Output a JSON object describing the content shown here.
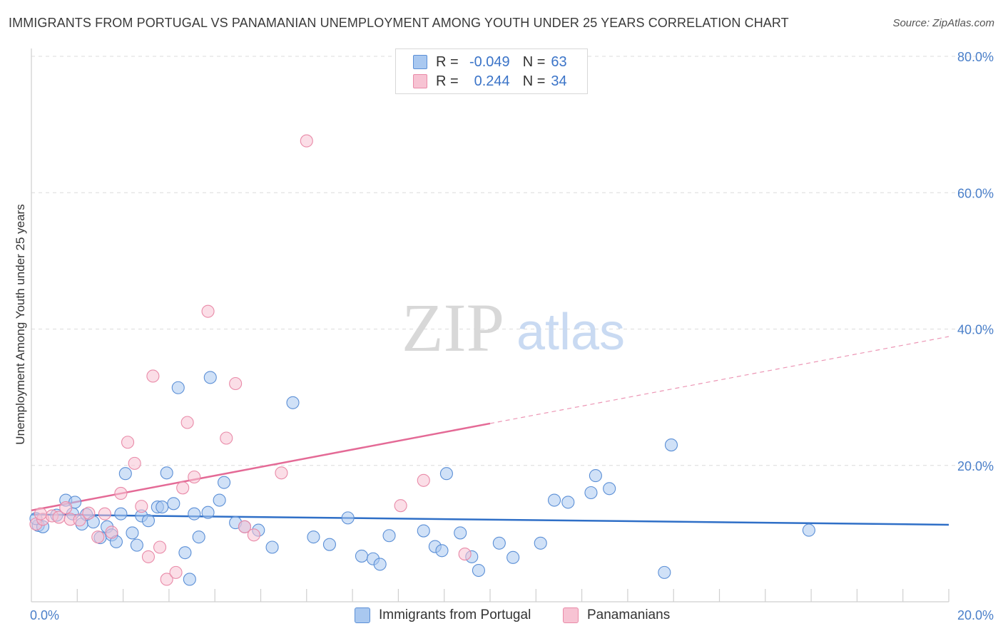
{
  "title": "IMMIGRANTS FROM PORTUGAL VS PANAMANIAN UNEMPLOYMENT AMONG YOUTH UNDER 25 YEARS CORRELATION CHART",
  "source": "Source: ZipAtlas.com",
  "watermark": {
    "zip": "ZIP",
    "atlas": "atlas"
  },
  "legend": {
    "rows": [
      {
        "r_label": "R =",
        "r_value": "-0.049",
        "n_label": "N =",
        "n_value": "63",
        "color": "#a9c8f0",
        "border": "#5b8fd6"
      },
      {
        "r_label": "R =",
        "r_value": "0.244",
        "n_label": "N =",
        "n_value": "34",
        "color": "#f7c3d3",
        "border": "#e98aa8"
      }
    ]
  },
  "bottom_legend": [
    {
      "label": "Immigrants from Portugal",
      "color": "#a9c8f0",
      "border": "#5b8fd6"
    },
    {
      "label": "Panamanians",
      "color": "#f7c3d3",
      "border": "#e98aa8"
    }
  ],
  "chart_data": {
    "type": "scatter",
    "title": "IMMIGRANTS FROM PORTUGAL VS PANAMANIAN UNEMPLOYMENT AMONG YOUTH UNDER 25 YEARS CORRELATION CHART",
    "xlabel": "",
    "ylabel": "Unemployment Among Youth under 25 years",
    "xlim": [
      0,
      20
    ],
    "ylim": [
      0,
      80
    ],
    "x_tick_labels": [
      "0.0%",
      "20.0%"
    ],
    "y_ticks": [
      20,
      40,
      60,
      80
    ],
    "y_tick_labels": [
      "20.0%",
      "40.0%",
      "60.0%",
      "80.0%"
    ],
    "grid": true,
    "series": [
      {
        "name": "Immigrants from Portugal",
        "color": "#a9c8f0",
        "stroke": "#5b8fd6",
        "trend": {
          "x": [
            0,
            20
          ],
          "y": [
            12.8,
            11.3
          ],
          "color": "#2f6fc7",
          "solid_until": 20
        },
        "points": [
          [
            0.15,
            11.2
          ],
          [
            0.25,
            11.0
          ],
          [
            0.55,
            12.7
          ],
          [
            0.75,
            14.9
          ],
          [
            0.9,
            12.9
          ],
          [
            0.95,
            14.6
          ],
          [
            1.1,
            11.4
          ],
          [
            1.2,
            12.8
          ],
          [
            1.35,
            11.7
          ],
          [
            1.5,
            9.4
          ],
          [
            1.65,
            11.0
          ],
          [
            1.75,
            9.8
          ],
          [
            1.85,
            8.8
          ],
          [
            1.95,
            12.9
          ],
          [
            2.05,
            18.8
          ],
          [
            2.2,
            10.1
          ],
          [
            2.3,
            8.3
          ],
          [
            2.4,
            12.6
          ],
          [
            2.55,
            11.9
          ],
          [
            2.75,
            13.9
          ],
          [
            2.85,
            13.9
          ],
          [
            2.95,
            18.9
          ],
          [
            3.1,
            14.4
          ],
          [
            3.2,
            31.4
          ],
          [
            3.35,
            7.2
          ],
          [
            3.45,
            3.3
          ],
          [
            3.55,
            12.9
          ],
          [
            3.65,
            9.5
          ],
          [
            3.85,
            13.1
          ],
          [
            3.9,
            32.9
          ],
          [
            4.1,
            14.9
          ],
          [
            4.2,
            17.5
          ],
          [
            4.45,
            11.6
          ],
          [
            4.65,
            11.0
          ],
          [
            4.95,
            10.5
          ],
          [
            5.25,
            8.0
          ],
          [
            5.7,
            29.2
          ],
          [
            6.15,
            9.5
          ],
          [
            6.5,
            8.4
          ],
          [
            6.9,
            12.3
          ],
          [
            7.2,
            6.7
          ],
          [
            7.45,
            6.3
          ],
          [
            7.6,
            5.5
          ],
          [
            7.8,
            9.7
          ],
          [
            8.55,
            10.4
          ],
          [
            8.8,
            8.1
          ],
          [
            8.95,
            7.5
          ],
          [
            9.05,
            18.8
          ],
          [
            9.35,
            10.1
          ],
          [
            9.6,
            6.6
          ],
          [
            9.75,
            4.6
          ],
          [
            10.2,
            8.6
          ],
          [
            10.5,
            6.5
          ],
          [
            11.1,
            8.6
          ],
          [
            11.4,
            14.9
          ],
          [
            11.7,
            14.6
          ],
          [
            12.2,
            16.0
          ],
          [
            12.3,
            18.5
          ],
          [
            12.6,
            16.6
          ],
          [
            13.8,
            4.3
          ],
          [
            13.95,
            23.0
          ],
          [
            16.95,
            10.5
          ],
          [
            0.1,
            12.2
          ]
        ]
      },
      {
        "name": "Panamanians",
        "color": "#f7c3d3",
        "stroke": "#e98aa8",
        "trend": {
          "x": [
            0,
            20
          ],
          "y": [
            13.4,
            38.9
          ],
          "color": "#e46a96",
          "solid_until": 10
        },
        "points": [
          [
            0.1,
            11.4
          ],
          [
            0.25,
            12.1
          ],
          [
            0.45,
            12.6
          ],
          [
            0.6,
            12.4
          ],
          [
            0.75,
            13.8
          ],
          [
            0.85,
            12.1
          ],
          [
            1.05,
            12.0
          ],
          [
            1.25,
            13.0
          ],
          [
            1.45,
            9.5
          ],
          [
            1.6,
            12.9
          ],
          [
            1.75,
            10.2
          ],
          [
            1.95,
            15.9
          ],
          [
            2.1,
            23.4
          ],
          [
            2.25,
            20.3
          ],
          [
            2.4,
            14.0
          ],
          [
            2.55,
            6.6
          ],
          [
            2.65,
            33.1
          ],
          [
            2.8,
            8.0
          ],
          [
            2.95,
            3.3
          ],
          [
            3.15,
            4.3
          ],
          [
            3.3,
            16.7
          ],
          [
            3.4,
            26.3
          ],
          [
            3.55,
            18.3
          ],
          [
            3.85,
            42.6
          ],
          [
            4.25,
            24.0
          ],
          [
            4.45,
            32.0
          ],
          [
            4.65,
            11.0
          ],
          [
            4.85,
            9.8
          ],
          [
            5.45,
            18.9
          ],
          [
            6.0,
            67.6
          ],
          [
            8.05,
            14.1
          ],
          [
            8.55,
            17.8
          ],
          [
            9.45,
            7.0
          ],
          [
            0.2,
            12.9
          ]
        ]
      }
    ]
  }
}
